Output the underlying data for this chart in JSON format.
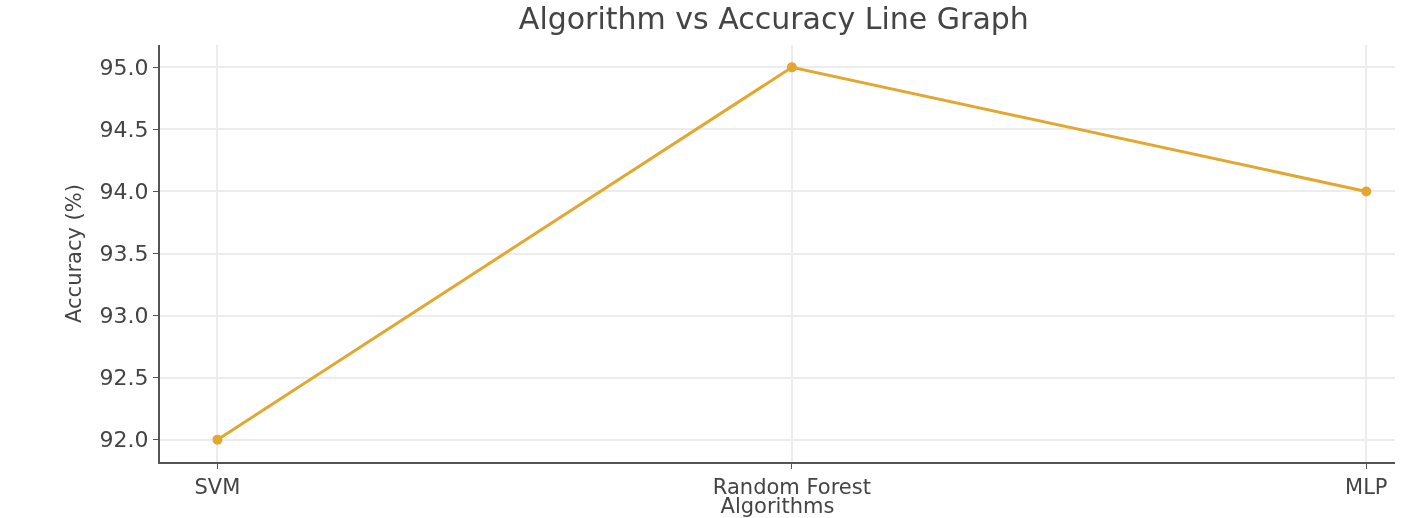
{
  "chart_data": {
    "type": "line",
    "title": "Algorithm vs Accuracy Line Graph",
    "xlabel": "Algorithms",
    "ylabel": "Accuracy (%)",
    "categories": [
      "SVM",
      "Random Forest",
      "MLP"
    ],
    "series": [
      {
        "color": "#e3a72f",
        "values": [
          92.0,
          95.0,
          94.0
        ]
      }
    ],
    "ylim": [
      91.82,
      95.18
    ],
    "yticks": [
      {
        "value": 92,
        "label": "92.0"
      },
      {
        "value": 92.5,
        "label": "92.5"
      },
      {
        "value": 93,
        "label": "93.0"
      },
      {
        "value": 93.5,
        "label": "93.5"
      },
      {
        "value": 94,
        "label": "94.0"
      },
      {
        "value": 94.5,
        "label": "94.5"
      },
      {
        "value": 95,
        "label": "95.0"
      }
    ],
    "grid": true,
    "marker": "circle",
    "line_style": "solid"
  }
}
